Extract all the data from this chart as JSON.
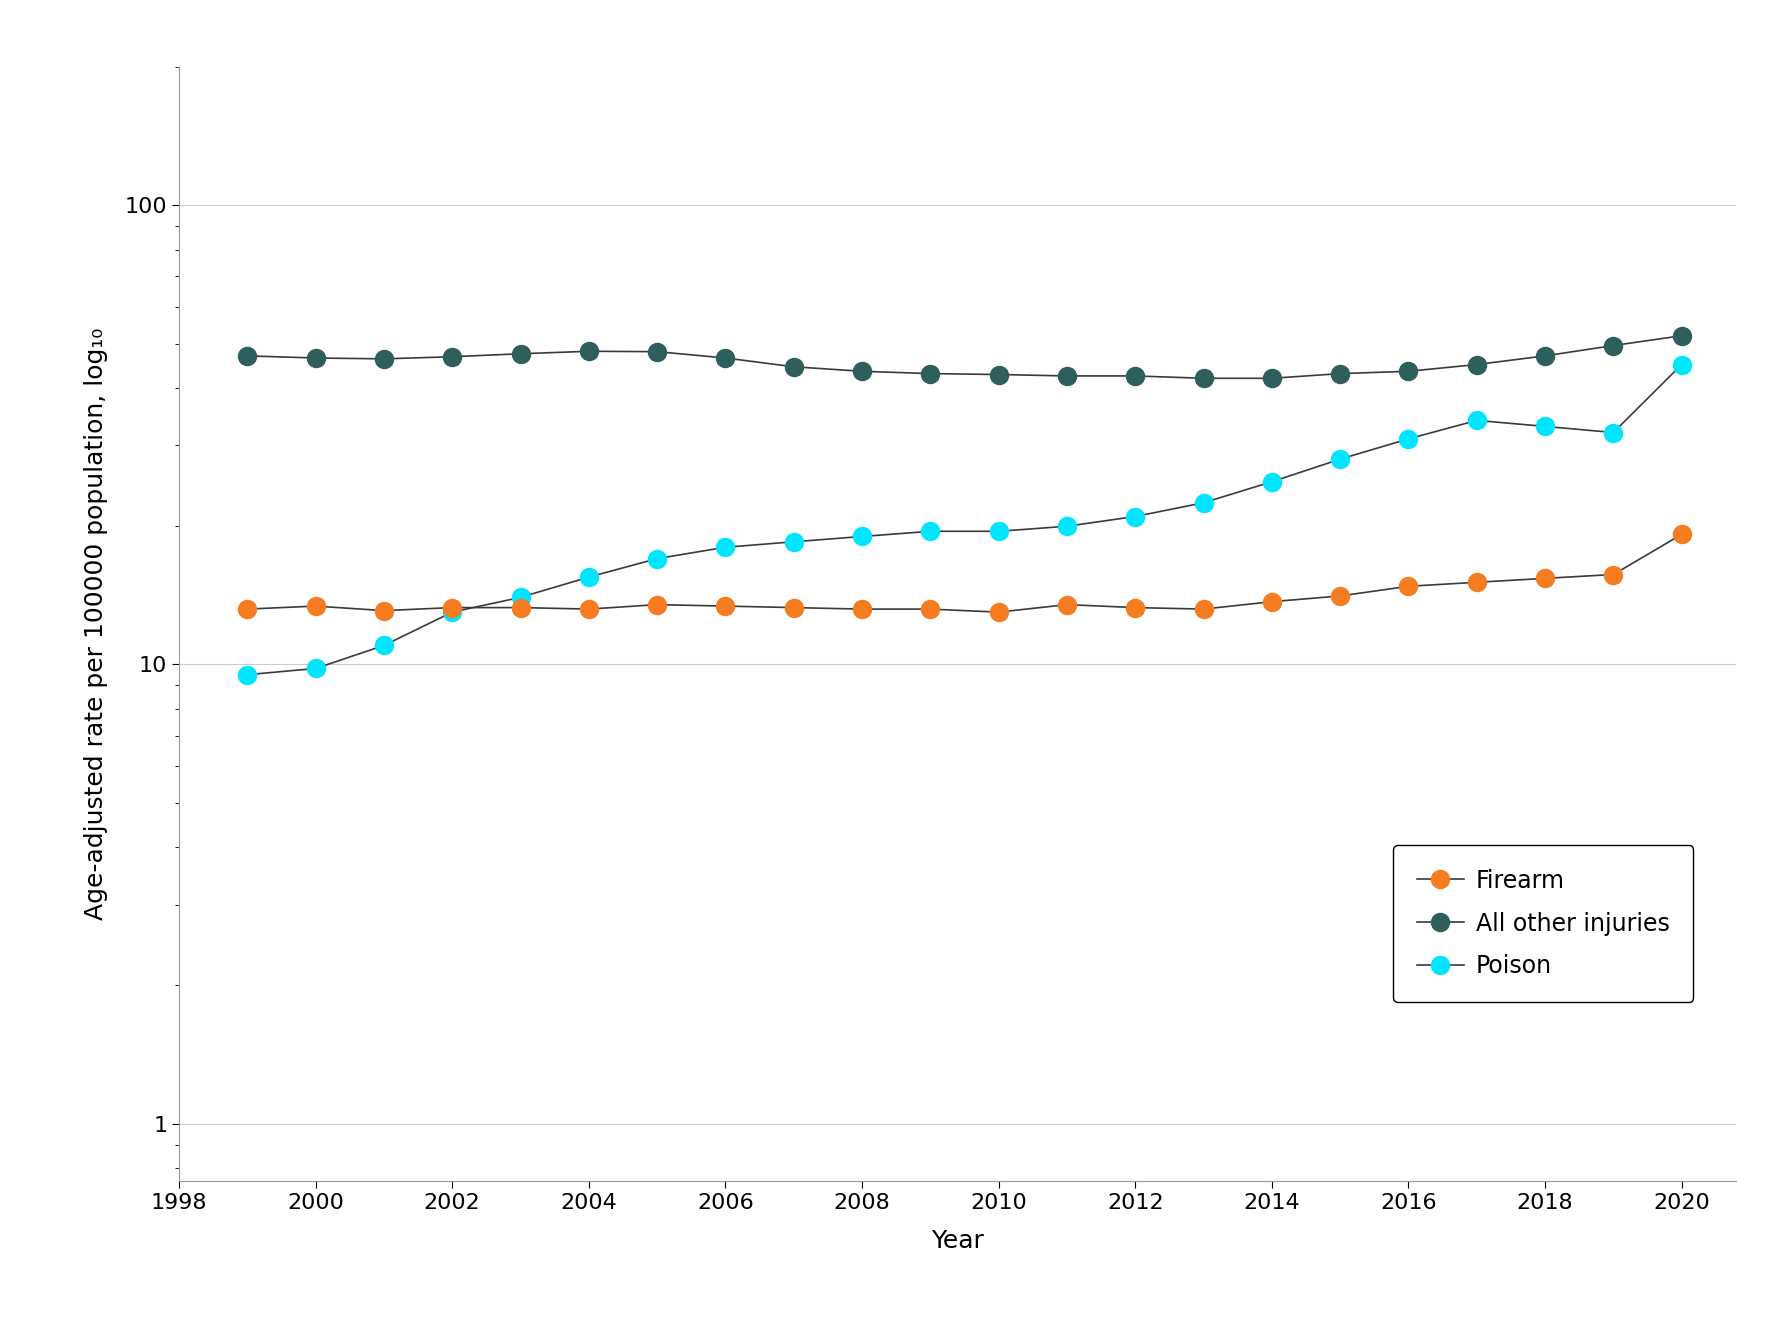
{
  "years": [
    1999,
    2000,
    2001,
    2002,
    2003,
    2004,
    2005,
    2006,
    2007,
    2008,
    2009,
    2010,
    2011,
    2012,
    2013,
    2014,
    2015,
    2016,
    2017,
    2018,
    2019,
    2020
  ],
  "firearm": [
    13.2,
    13.4,
    13.1,
    13.3,
    13.3,
    13.2,
    13.5,
    13.4,
    13.3,
    13.2,
    13.2,
    13.0,
    13.5,
    13.3,
    13.2,
    13.7,
    14.1,
    14.8,
    15.1,
    15.4,
    15.7,
    19.2
  ],
  "all_other": [
    47.0,
    46.5,
    46.3,
    46.8,
    47.5,
    48.1,
    48.0,
    46.5,
    44.5,
    43.5,
    43.0,
    42.8,
    42.5,
    42.5,
    42.0,
    42.0,
    43.0,
    43.5,
    45.0,
    47.0,
    49.5,
    52.0
  ],
  "poison": [
    9.5,
    9.8,
    11.0,
    13.0,
    14.0,
    15.5,
    17.0,
    18.0,
    18.5,
    19.0,
    19.5,
    19.5,
    20.0,
    21.0,
    22.5,
    25.0,
    28.0,
    31.0,
    34.0,
    33.0,
    32.0,
    45.0
  ],
  "firearm_color": "#F57C20",
  "all_other_color": "#2E5F5C",
  "poison_color": "#00E5FF",
  "line_color": "#3A3A3A",
  "background_color": "#FFFFFF",
  "ylabel": "Age-adjusted rate per 100000 population, log₁₀",
  "xlabel": "Year",
  "ylim_min": 0.75,
  "ylim_max": 200,
  "xlim_min": 1998.0,
  "xlim_max": 2020.8,
  "legend_labels": [
    "Firearm",
    "All other injuries",
    "Poison"
  ],
  "yticks": [
    1,
    10,
    100
  ],
  "marker_size": 13,
  "line_width": 1.2,
  "font_size_label": 18,
  "font_size_tick": 16,
  "font_size_legend": 17
}
